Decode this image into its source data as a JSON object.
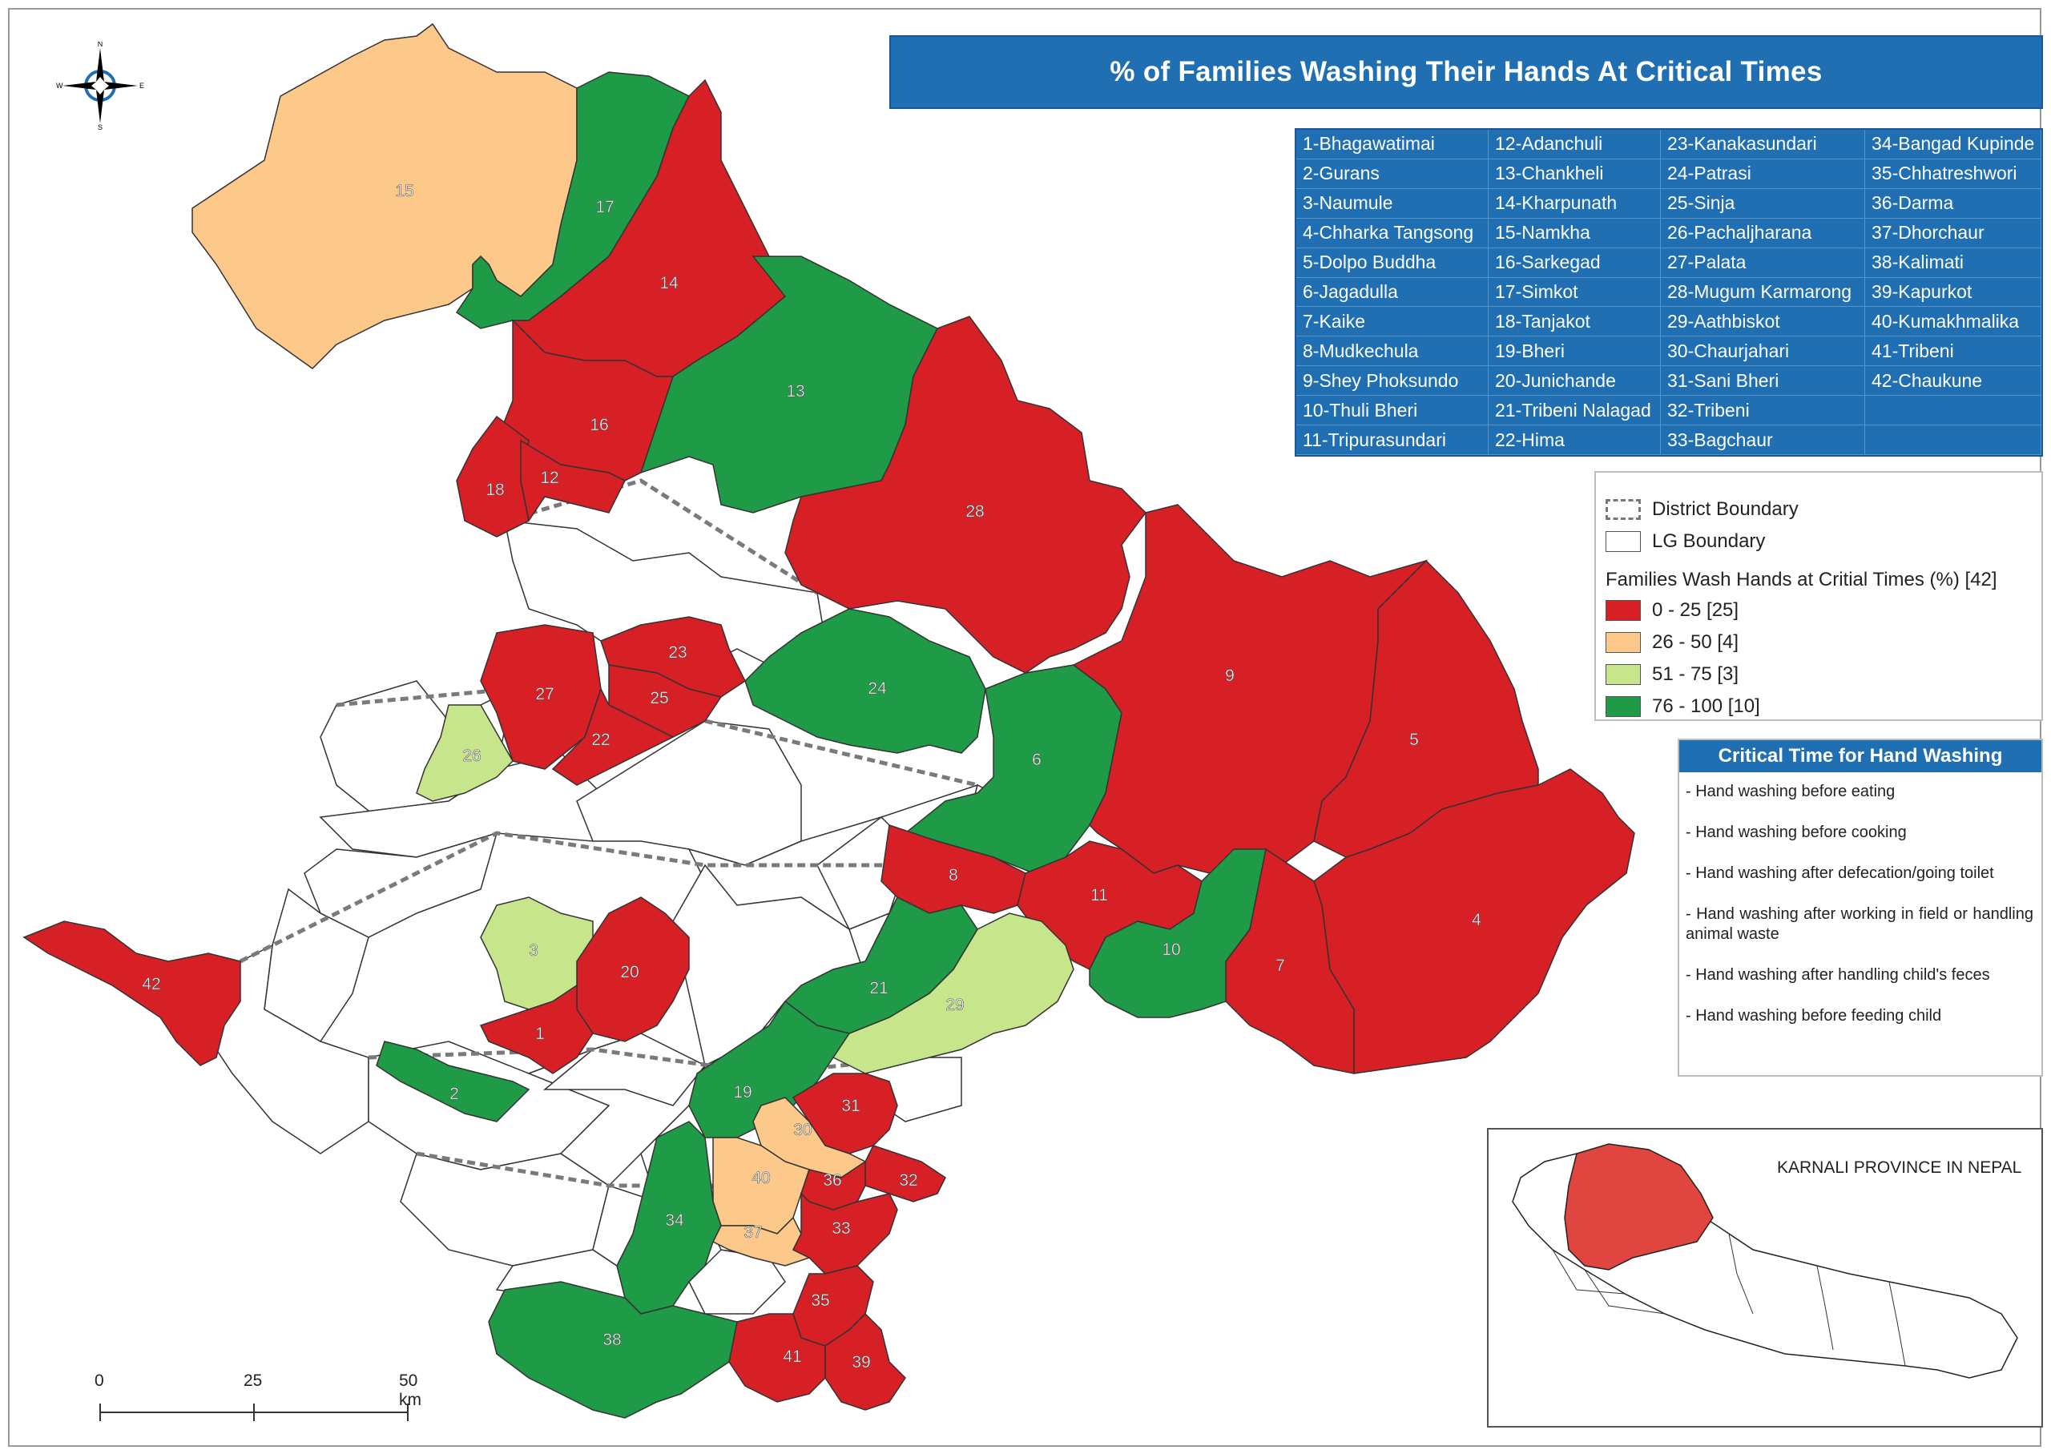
{
  "title": "% of Families Washing Their Hands At Critical Times",
  "map_labels": [
    "1",
    "2",
    "3",
    "4",
    "5",
    "6",
    "7",
    "8",
    "9",
    "10",
    "11",
    "12",
    "13",
    "14",
    "15",
    "16",
    "17",
    "18",
    "19",
    "20",
    "21",
    "22",
    "23",
    "24",
    "25",
    "26",
    "27",
    "28",
    "29",
    "30",
    "31",
    "32",
    "33",
    "34",
    "35",
    "36",
    "37",
    "38",
    "39",
    "40",
    "41",
    "42"
  ],
  "category_colors": {
    "c0_25": "#d71f26",
    "c26_50": "#fdc98a",
    "c51_75": "#c7e68c",
    "c76_100": "#1f9a47",
    "none": "#ffffff"
  },
  "region_categories": {
    "1": "c0_25",
    "2": "c76_100",
    "3": "c51_75",
    "4": "c0_25",
    "5": "c0_25",
    "6": "c76_100",
    "7": "c0_25",
    "8": "c0_25",
    "9": "c0_25",
    "10": "c76_100",
    "11": "c0_25",
    "12": "c0_25",
    "13": "c76_100",
    "14": "c0_25",
    "15": "c26_50",
    "16": "c0_25",
    "17": "c76_100",
    "18": "c0_25",
    "19": "c76_100",
    "20": "c0_25",
    "21": "c76_100",
    "22": "c0_25",
    "23": "c0_25",
    "24": "c76_100",
    "25": "c0_25",
    "26": "c51_75",
    "27": "c0_25",
    "28": "c0_25",
    "29": "c51_75",
    "30": "c26_50",
    "31": "c0_25",
    "32": "c0_25",
    "33": "c0_25",
    "34": "c76_100",
    "35": "c0_25",
    "36": "c0_25",
    "37": "c26_50",
    "38": "c76_100",
    "39": "c0_25",
    "40": "c26_50",
    "41": "c0_25",
    "42": "c0_25"
  },
  "index_table": [
    [
      "1-Bhagawatimai",
      "12-Adanchuli",
      "23-Kanakasundari",
      "34-Bangad Kupinde"
    ],
    [
      "2-Gurans",
      "13-Chankheli",
      "24-Patrasi",
      "35-Chhatreshwori"
    ],
    [
      "3-Naumule",
      "14-Kharpunath",
      "25-Sinja",
      "36-Darma"
    ],
    [
      "4-Chharka Tangsong",
      "15-Namkha",
      "26-Pachaljharana",
      "37-Dhorchaur"
    ],
    [
      "5-Dolpo Buddha",
      "16-Sarkegad",
      "27-Palata",
      "38-Kalimati"
    ],
    [
      "6-Jagadulla",
      "17-Simkot",
      "28-Mugum Karmarong",
      "39-Kapurkot"
    ],
    [
      "7-Kaike",
      "18-Tanjakot",
      "29-Aathbiskot",
      "40-Kumakhmalika"
    ],
    [
      "8-Mudkechula",
      "19-Bheri",
      "30-Chaurjahari",
      "41-Tribeni"
    ],
    [
      "9-Shey Phoksundo",
      "20-Junichande",
      "31-Sani Bheri",
      "42-Chaukune"
    ],
    [
      "10-Thuli Bheri",
      "21-Tribeni Nalagad",
      "32-Tribeni",
      ""
    ],
    [
      "11-Tripurasundari",
      "22-Hima",
      "33-Bagchaur",
      ""
    ]
  ],
  "legend": {
    "district_boundary": "District Boundary",
    "lg_boundary": "LG Boundary",
    "title": "Families Wash Hands at Critial Times  (%) [42]",
    "classes": [
      {
        "label": "0 - 25 [25]",
        "color": "#d71f26"
      },
      {
        "label": "26 - 50 [4]",
        "color": "#fdc98a"
      },
      {
        "label": "51 - 75 [3]",
        "color": "#c7e68c"
      },
      {
        "label": "76 - 100 [10]",
        "color": "#1f9a47"
      }
    ]
  },
  "critical_time": {
    "title": "Critical Time for Hand Washing",
    "items": [
      "- Hand washing before eating",
      "- Hand washing before cooking",
      "- Hand washing after defecation/going toilet",
      "- Hand washing after working in field or handling animal waste",
      "- Hand washing after handling child's feces",
      "- Hand washing before feeding child"
    ]
  },
  "inset": {
    "label": "KARNALI PROVINCE IN NEPAL",
    "province_color": "#e0463f"
  },
  "scale": {
    "labels": [
      "0",
      "25",
      "50 km"
    ]
  },
  "compass": {
    "n": "N",
    "s": "S",
    "e": "E",
    "w": "W"
  }
}
